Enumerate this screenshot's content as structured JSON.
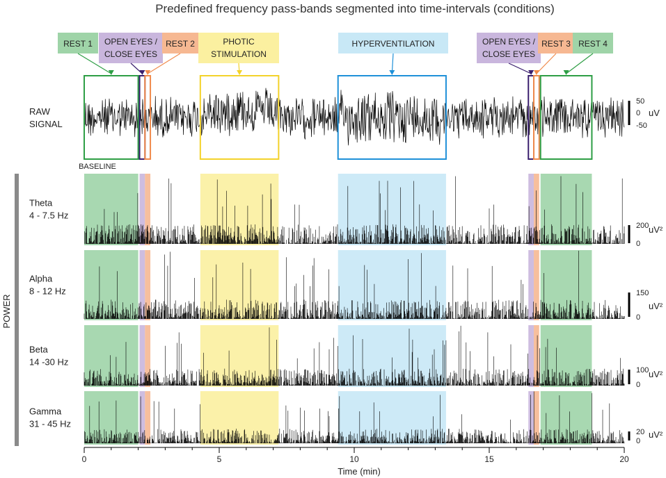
{
  "chart_data": {
    "type": "line",
    "title": "Predefined frequency pass-bands segmented into time-intervals (conditions)",
    "xlabel": "Time (min)",
    "xlim": [
      0,
      20
    ],
    "xticks": [
      0,
      5,
      10,
      15,
      20
    ],
    "conditions": [
      {
        "name": "REST 1",
        "start": 0.0,
        "end": 2.0,
        "color": "#2e9e45",
        "fill": "#9fd4a8"
      },
      {
        "name": "OPEN EYES / CLOSE EYES",
        "start": 2.05,
        "end": 2.25,
        "color": "#3a1f6e",
        "fill": "#c9b6dd"
      },
      {
        "name": "REST 2",
        "start": 2.25,
        "end": 2.45,
        "color": "#f08a4b",
        "fill": "#f6b892"
      },
      {
        "name": "PHOTIC STIMULATION",
        "start": 4.3,
        "end": 7.2,
        "color": "#f3d22a",
        "fill": "#fbf0a0"
      },
      {
        "name": "HYPERVENTILATION",
        "start": 9.4,
        "end": 13.4,
        "color": "#1e90d8",
        "fill": "#c8e8f6"
      },
      {
        "name": "OPEN EYES / CLOSE EYES",
        "start": 16.45,
        "end": 16.65,
        "color": "#3a1f6e",
        "fill": "#c9b6dd"
      },
      {
        "name": "REST 3",
        "start": 16.65,
        "end": 16.85,
        "color": "#f08a4b",
        "fill": "#f6b892"
      },
      {
        "name": "REST 4",
        "start": 16.9,
        "end": 18.8,
        "color": "#2e9e45",
        "fill": "#9fd4a8"
      }
    ],
    "baseline_label": "BASELINE",
    "power_label": "POWER",
    "panels": [
      {
        "name": "RAW SIGNAL",
        "line1": "RAW",
        "line2": "SIGNAL",
        "unit": "uV",
        "ylim": [
          -50,
          50
        ],
        "ticks": [
          "50",
          "0",
          "-50"
        ],
        "kind": "raw"
      },
      {
        "name": "Theta",
        "line1": "Theta",
        "line2": "4 - 7.5 Hz",
        "unit": "uV²",
        "ylim": [
          0,
          200
        ],
        "ticks": [
          "200",
          "0"
        ],
        "kind": "power"
      },
      {
        "name": "Alpha",
        "line1": "Alpha",
        "line2": "8 - 12 Hz",
        "unit": "uV²",
        "ylim": [
          0,
          150
        ],
        "ticks": [
          "150",
          "0"
        ],
        "kind": "power"
      },
      {
        "name": "Beta",
        "line1": "Beta",
        "line2": "14 -30 Hz",
        "unit": "uV²",
        "ylim": [
          0,
          100
        ],
        "ticks": [
          "100",
          "0"
        ],
        "kind": "power"
      },
      {
        "name": "Gamma",
        "line1": "Gamma",
        "line2": "31 - 45 Hz",
        "unit": "uV²",
        "ylim": [
          0,
          20
        ],
        "ticks": [
          "20",
          "0"
        ],
        "kind": "power"
      }
    ]
  }
}
